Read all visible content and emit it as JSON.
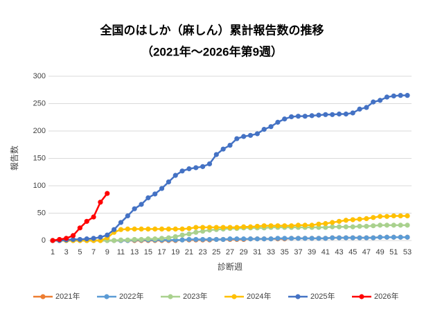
{
  "chart_data": {
    "type": "line",
    "title": "全国のはしか（麻しん）累計報告数の推移",
    "subtitle": "（2021年～2026年第9週）",
    "x_label": "診断週",
    "y_label": "報告数",
    "x": [
      1,
      2,
      3,
      4,
      5,
      6,
      7,
      8,
      9,
      10,
      11,
      12,
      13,
      14,
      15,
      16,
      17,
      18,
      19,
      20,
      21,
      22,
      23,
      24,
      25,
      26,
      27,
      28,
      29,
      30,
      31,
      32,
      33,
      34,
      35,
      36,
      37,
      38,
      39,
      40,
      41,
      42,
      43,
      44,
      45,
      46,
      47,
      48,
      49,
      50,
      51,
      52,
      53
    ],
    "xlim": [
      1,
      53
    ],
    "xticks": [
      1,
      3,
      5,
      7,
      9,
      11,
      13,
      15,
      17,
      19,
      21,
      23,
      25,
      27,
      29,
      31,
      33,
      35,
      37,
      39,
      41,
      43,
      45,
      47,
      49,
      51,
      53
    ],
    "ylim": [
      0,
      300
    ],
    "yticks": [
      0,
      50,
      100,
      150,
      200,
      250,
      300
    ],
    "grid": true,
    "legend": "bottom",
    "series": [
      {
        "name": "2021年",
        "color": "#ed7d31",
        "values": [
          0,
          0,
          0,
          0,
          0,
          0,
          0,
          0,
          0,
          0,
          0,
          0,
          0,
          0,
          0,
          0,
          0,
          0,
          0,
          1,
          1,
          1,
          1,
          1,
          2,
          2,
          2,
          2,
          2,
          3,
          3,
          3,
          3,
          3,
          3,
          4,
          4,
          4,
          4,
          4,
          4,
          5,
          5,
          5,
          5,
          5,
          5,
          5,
          6,
          6,
          6,
          6,
          6
        ]
      },
      {
        "name": "2022年",
        "color": "#5b9bd5",
        "values": [
          0,
          0,
          0,
          0,
          0,
          0,
          0,
          0,
          0,
          0,
          0,
          0,
          1,
          1,
          1,
          1,
          1,
          1,
          1,
          1,
          2,
          2,
          2,
          2,
          2,
          2,
          3,
          3,
          3,
          3,
          3,
          3,
          3,
          4,
          4,
          4,
          4,
          4,
          4,
          4,
          4,
          5,
          5,
          5,
          5,
          5,
          5,
          5,
          6,
          6,
          6,
          6,
          6
        ]
      },
      {
        "name": "2023年",
        "color": "#a9d18e",
        "values": [
          0,
          0,
          0,
          0,
          0,
          0,
          0,
          0,
          0,
          0,
          1,
          1,
          2,
          2,
          3,
          3,
          4,
          5,
          7,
          10,
          12,
          15,
          17,
          19,
          20,
          21,
          22,
          22,
          23,
          23,
          23,
          23,
          24,
          24,
          24,
          24,
          24,
          24,
          24,
          24,
          24,
          25,
          25,
          25,
          25,
          26,
          26,
          27,
          28,
          28,
          28,
          28,
          28
        ]
      },
      {
        "name": "2024年",
        "color": "#ffc000",
        "values": [
          0,
          0,
          0,
          0,
          0,
          0,
          0,
          0,
          5,
          15,
          20,
          21,
          21,
          21,
          21,
          21,
          21,
          21,
          21,
          21,
          22,
          24,
          24,
          24,
          24,
          24,
          24,
          24,
          25,
          25,
          26,
          27,
          27,
          27,
          27,
          27,
          28,
          28,
          28,
          30,
          31,
          33,
          35,
          37,
          38,
          39,
          40,
          42,
          44,
          44,
          45,
          45,
          45
        ]
      },
      {
        "name": "2025年",
        "color": "#4472c4",
        "values": [
          0,
          0,
          1,
          2,
          2,
          3,
          4,
          6,
          10,
          20,
          33,
          45,
          58,
          66,
          78,
          85,
          95,
          107,
          119,
          127,
          131,
          133,
          135,
          140,
          157,
          167,
          174,
          186,
          190,
          192,
          195,
          203,
          208,
          216,
          222,
          226,
          227,
          227,
          228,
          229,
          230,
          230,
          231,
          231,
          233,
          240,
          243,
          253,
          256,
          262,
          264,
          265,
          265
        ]
      },
      {
        "name": "2026年",
        "color": "#ff0000",
        "values": [
          0,
          2,
          4,
          9,
          23,
          35,
          43,
          70,
          86,
          null,
          null,
          null,
          null,
          null,
          null,
          null,
          null,
          null,
          null,
          null,
          null,
          null,
          null,
          null,
          null,
          null,
          null,
          null,
          null,
          null,
          null,
          null,
          null,
          null,
          null,
          null,
          null,
          null,
          null,
          null,
          null,
          null,
          null,
          null,
          null,
          null,
          null,
          null,
          null,
          null,
          null,
          null,
          null
        ]
      }
    ]
  }
}
